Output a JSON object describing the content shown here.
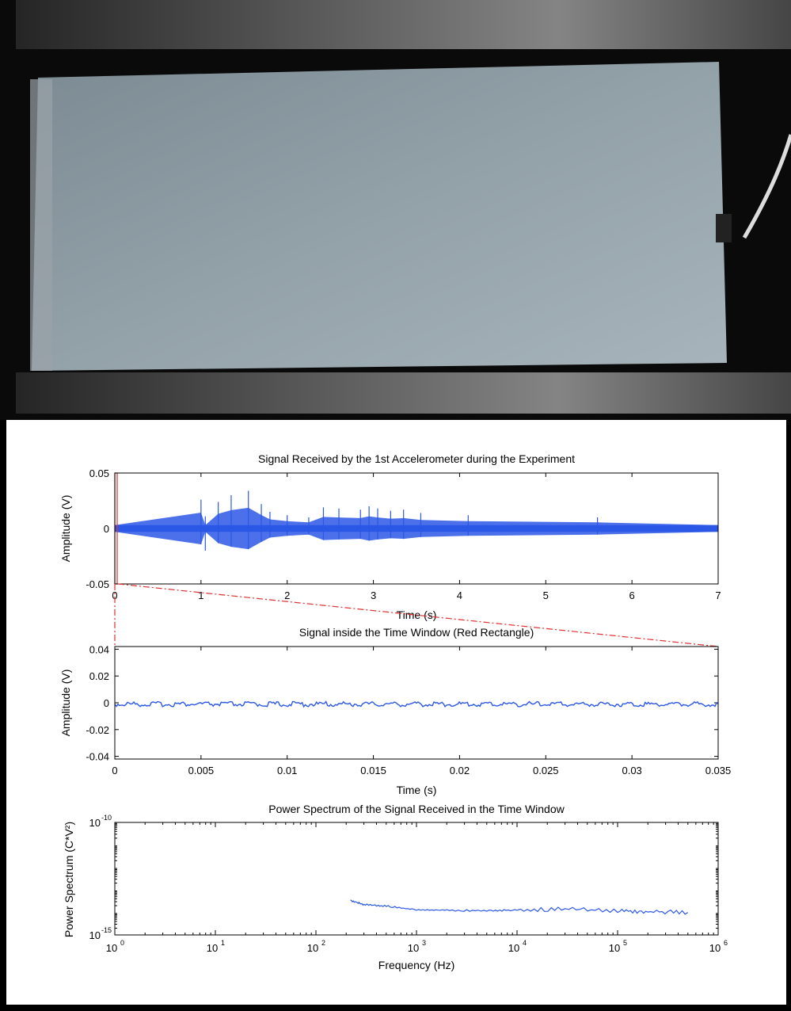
{
  "chart_data": [
    {
      "type": "line",
      "title": "Signal Received by the 1st Accelerometer during the Experiment",
      "xlabel": "Time (s)",
      "ylabel": "Amplitude (V)",
      "xlim": [
        0,
        7
      ],
      "ylim": [
        -0.05,
        0.05
      ],
      "xticks": [
        "0",
        "1",
        "2",
        "3",
        "4",
        "5",
        "6",
        "7"
      ],
      "yticks": [
        "-0.05",
        "0",
        "0.05"
      ],
      "grid": false,
      "color": "#2b57e6",
      "highlight_color": "#e03030",
      "highlight_window": [
        0,
        0.035
      ],
      "series": [
        {
          "x": [
            0,
            1.0,
            1.05,
            1.2,
            1.35,
            1.55,
            1.7,
            1.8,
            2.0,
            2.25,
            2.42,
            2.6,
            2.85,
            2.95,
            3.05,
            3.2,
            3.35,
            3.55,
            4.1,
            5.6,
            7.0
          ],
          "values": [
            0.003,
            0.026,
            -0.02,
            0.024,
            0.03,
            0.034,
            0.022,
            0.015,
            0.012,
            0.01,
            0.019,
            0.018,
            0.017,
            0.02,
            0.018,
            0.016,
            0.017,
            0.014,
            0.012,
            0.01,
            0.003
          ]
        }
      ]
    },
    {
      "type": "line",
      "title": "Signal inside the Time Window (Red Rectangle)",
      "xlabel": "Time (s)",
      "ylabel": "Amplitude (V)",
      "xlim": [
        0,
        0.035
      ],
      "ylim": [
        -0.042,
        0.042
      ],
      "xticks": [
        "0",
        "0.005",
        "0.01",
        "0.015",
        "0.02",
        "0.025",
        "0.03",
        "0.035"
      ],
      "yticks": [
        "0.04",
        "0.02",
        "0",
        "-0.02",
        "-0.04"
      ],
      "grid": false,
      "color": "#2b57e6",
      "series": [
        {
          "x": [
            0,
            0.035
          ],
          "values": [
            -0.001,
            -0.001
          ]
        }
      ]
    },
    {
      "type": "line",
      "title": "Power Spectrum of the Signal Received in the Time Window",
      "xlabel": "Frequency (Hz)",
      "ylabel": "Power Spectrum (C*V²)",
      "x_scale": "log",
      "y_scale": "log",
      "xlim": [
        1,
        1000000
      ],
      "ylim": [
        1e-15,
        1e-10
      ],
      "xtick_exponents": [
        "0",
        "1",
        "2",
        "3",
        "4",
        "5",
        "6"
      ],
      "ytick_exponents": [
        "-10",
        "-15"
      ],
      "tick_base": "10",
      "grid": false,
      "color": "#2b57e6",
      "series": [
        {
          "x": [
            220,
            300,
            500,
            1000,
            2000,
            5000,
            10000,
            30000,
            100000,
            200000,
            500000
          ],
          "values": [
            3.5e-14,
            2.2e-14,
            1.9e-14,
            1.3e-14,
            1.25e-14,
            1.2e-14,
            1.3e-14,
            1.4e-14,
            1.2e-14,
            1.1e-14,
            1e-14
          ]
        }
      ]
    }
  ]
}
